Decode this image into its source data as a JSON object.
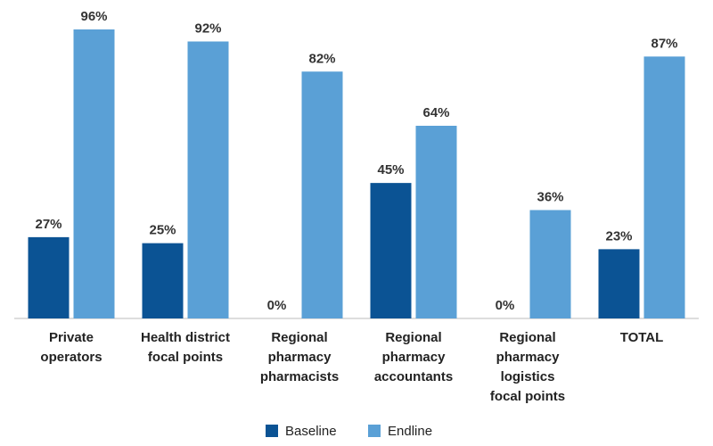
{
  "chart_data": {
    "type": "bar",
    "categories": [
      "Private\noperators",
      "Health district\nfocal points",
      "Regional\npharmacy\npharmacists",
      "Regional\npharmacy\naccountants",
      "Regional\npharmacy\nlogistics\nfocal points",
      "TOTAL"
    ],
    "series": [
      {
        "name": "Baseline",
        "color": "#0b5394",
        "values": [
          27,
          25,
          0,
          45,
          0,
          23
        ],
        "value_labels": [
          "27%",
          "25%",
          "0%",
          "45%",
          "0%",
          "23%"
        ]
      },
      {
        "name": "Endline",
        "color": "#5aa0d6",
        "values": [
          96,
          92,
          82,
          64,
          36,
          87
        ],
        "value_labels": [
          "96%",
          "92%",
          "82%",
          "64%",
          "36%",
          "87%"
        ]
      }
    ],
    "ylim": [
      0,
      100
    ],
    "legend": "bottom"
  }
}
